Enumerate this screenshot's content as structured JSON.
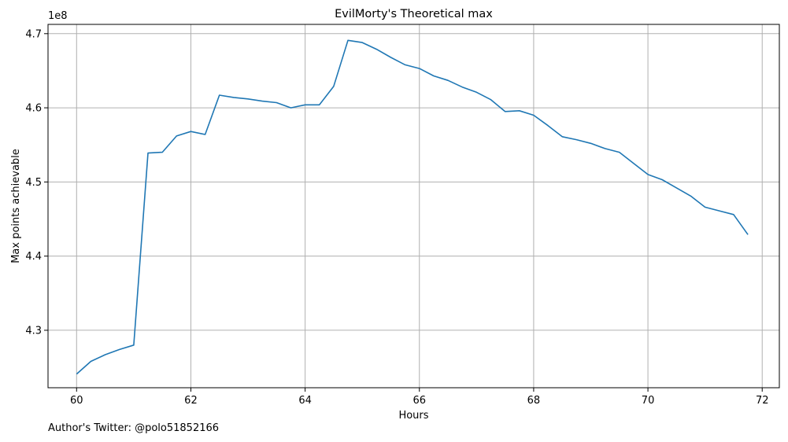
{
  "chart_data": {
    "type": "line",
    "title": "EvilMorty's Theoretical max",
    "xlabel": "Hours",
    "ylabel": "Max points achievable",
    "y_offset_label": "1e8",
    "y_scale": 100000000,
    "xlim": [
      59.5,
      72.3
    ],
    "ylim": [
      4.2225,
      4.7125
    ],
    "x_ticks": [
      60,
      62,
      64,
      66,
      68,
      70,
      72
    ],
    "x_tick_labels": [
      "60",
      "62",
      "64",
      "66",
      "68",
      "70",
      "72"
    ],
    "y_ticks": [
      4.3,
      4.4,
      4.5,
      4.6,
      4.7
    ],
    "y_tick_labels": [
      "4.3",
      "4.4",
      "4.5",
      "4.6",
      "4.7"
    ],
    "grid": true,
    "line_color": "#1f77b4",
    "series": [
      {
        "x": [
          60.0,
          60.25,
          60.5,
          60.75,
          61.0,
          61.25,
          61.5,
          61.75,
          62.0,
          62.25,
          62.5,
          62.75,
          63.0,
          63.25,
          63.5,
          63.75,
          64.0,
          64.25,
          64.5,
          64.75,
          65.0,
          65.25,
          65.5,
          65.75,
          66.0,
          66.25,
          66.5,
          66.75,
          67.0,
          67.25,
          67.5,
          67.75,
          68.0,
          68.25,
          68.5,
          68.75,
          69.0,
          69.25,
          69.5,
          69.75,
          70.0,
          70.25,
          70.5,
          70.75,
          71.0,
          71.25,
          71.5,
          71.75
        ],
        "y": [
          4.241,
          4.258,
          4.267,
          4.274,
          4.28,
          4.539,
          4.54,
          4.562,
          4.568,
          4.564,
          4.617,
          4.614,
          4.612,
          4.609,
          4.607,
          4.6,
          4.604,
          4.604,
          4.629,
          4.691,
          4.688,
          4.679,
          4.668,
          4.658,
          4.653,
          4.643,
          4.637,
          4.628,
          4.621,
          4.611,
          4.595,
          4.596,
          4.59,
          4.576,
          4.561,
          4.557,
          4.552,
          4.545,
          4.54,
          4.525,
          4.51,
          4.503,
          4.492,
          4.481,
          4.466,
          4.461,
          4.456,
          4.429
        ]
      }
    ]
  },
  "footer": {
    "author_text": "Author's Twitter: @polo51852166"
  }
}
